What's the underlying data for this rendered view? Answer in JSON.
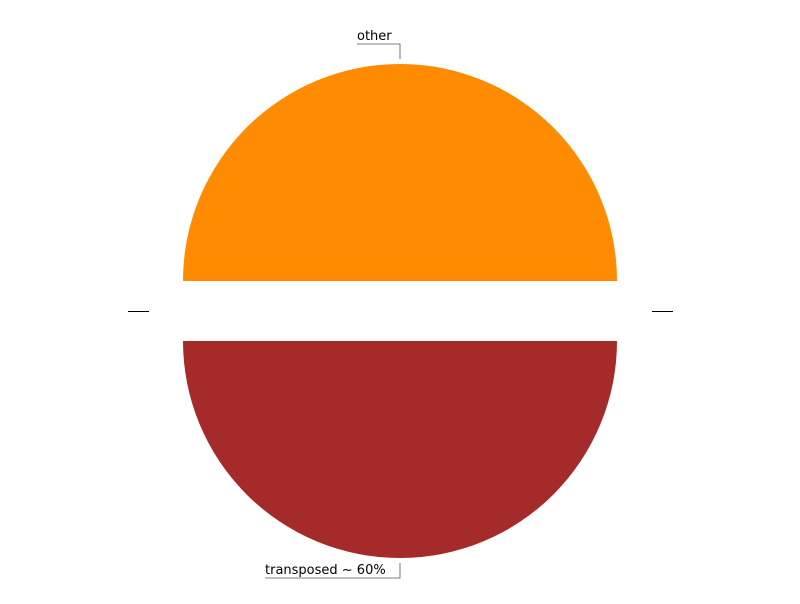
{
  "chart_data": {
    "type": "pie",
    "title": "",
    "slices": [
      {
        "label": "other",
        "value": 50,
        "color": "#ff8c00"
      },
      {
        "label": "transposed ~ 60%",
        "value": 50,
        "color": "#a52a2a"
      }
    ],
    "exploded": true,
    "legend": "none",
    "grid": false
  }
}
